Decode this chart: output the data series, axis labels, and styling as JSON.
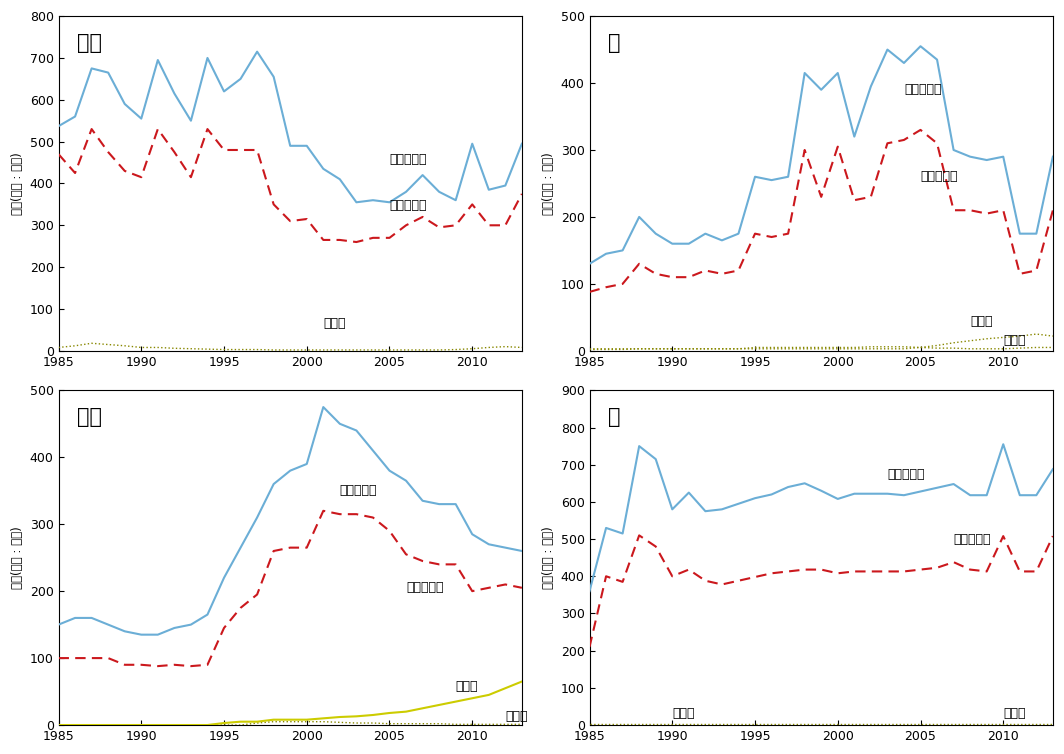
{
  "years": [
    1985,
    1986,
    1987,
    1988,
    1989,
    1990,
    1991,
    1992,
    1993,
    1994,
    1995,
    1996,
    1997,
    1998,
    1999,
    2000,
    2001,
    2002,
    2003,
    2004,
    2005,
    2006,
    2007,
    2008,
    2009,
    2010,
    2011,
    2012,
    2013
  ],
  "apple_prod": [
    537,
    560,
    675,
    665,
    590,
    555,
    695,
    615,
    550,
    700,
    620,
    650,
    715,
    655,
    490,
    490,
    435,
    410,
    355,
    360,
    355,
    380,
    420,
    380,
    360,
    495,
    385,
    395,
    495
  ],
  "apple_food": [
    470,
    425,
    530,
    475,
    430,
    415,
    530,
    475,
    415,
    530,
    480,
    480,
    480,
    350,
    310,
    315,
    265,
    265,
    260,
    270,
    270,
    300,
    320,
    295,
    300,
    350,
    300,
    300,
    375
  ],
  "apple_export": [
    8,
    12,
    18,
    15,
    12,
    8,
    8,
    6,
    5,
    4,
    3,
    3,
    3,
    2,
    2,
    2,
    2,
    2,
    2,
    2,
    2,
    2,
    2,
    2,
    3,
    5,
    8,
    10,
    8
  ],
  "apple_import": [
    0,
    0,
    0,
    0,
    0,
    0,
    0,
    0,
    0,
    0,
    0,
    0,
    0,
    0,
    0,
    0,
    0,
    0,
    0,
    0,
    0,
    0,
    0,
    0,
    0,
    0,
    0,
    0,
    0
  ],
  "pear_prod": [
    130,
    145,
    150,
    200,
    175,
    160,
    160,
    175,
    165,
    175,
    260,
    255,
    260,
    415,
    390,
    415,
    320,
    395,
    450,
    430,
    455,
    435,
    300,
    290,
    285,
    290,
    175,
    175,
    290
  ],
  "pear_food": [
    88,
    95,
    100,
    130,
    115,
    110,
    110,
    120,
    115,
    120,
    175,
    170,
    175,
    300,
    230,
    305,
    225,
    230,
    310,
    315,
    330,
    310,
    210,
    210,
    205,
    210,
    115,
    120,
    210
  ],
  "pear_export": [
    2,
    2,
    2,
    3,
    3,
    3,
    3,
    3,
    3,
    3,
    5,
    5,
    5,
    5,
    5,
    5,
    5,
    6,
    6,
    6,
    5,
    4,
    4,
    3,
    3,
    3,
    4,
    5,
    5
  ],
  "pear_import": [
    3,
    3,
    3,
    3,
    3,
    3,
    3,
    3,
    3,
    3,
    3,
    3,
    3,
    3,
    3,
    3,
    3,
    3,
    3,
    3,
    5,
    8,
    12,
    15,
    18,
    20,
    22,
    25,
    22
  ],
  "grape_prod": [
    150,
    160,
    160,
    150,
    140,
    135,
    135,
    145,
    150,
    165,
    220,
    265,
    310,
    360,
    380,
    390,
    475,
    450,
    440,
    410,
    380,
    365,
    335,
    330,
    330,
    285,
    270,
    265,
    260
  ],
  "grape_food": [
    100,
    100,
    100,
    100,
    90,
    90,
    88,
    90,
    88,
    90,
    145,
    175,
    195,
    260,
    265,
    265,
    320,
    315,
    315,
    310,
    290,
    255,
    245,
    240,
    240,
    200,
    205,
    210,
    205
  ],
  "grape_export": [
    0,
    0,
    0,
    0,
    0,
    0,
    0,
    0,
    0,
    0,
    0,
    0,
    3,
    5,
    5,
    5,
    5,
    4,
    3,
    3,
    2,
    2,
    2,
    2,
    1,
    1,
    1,
    1,
    1
  ],
  "grape_import": [
    0,
    0,
    0,
    0,
    0,
    0,
    0,
    0,
    0,
    0,
    3,
    5,
    5,
    8,
    8,
    8,
    10,
    12,
    13,
    15,
    18,
    20,
    25,
    30,
    35,
    40,
    45,
    55,
    65
  ],
  "citrus_prod": [
    360,
    530,
    515,
    750,
    715,
    580,
    625,
    575,
    580,
    595,
    610,
    620,
    640,
    650,
    630,
    608,
    622,
    622,
    622,
    618,
    628,
    638,
    648,
    618,
    618,
    755,
    618,
    618,
    688
  ],
  "citrus_food": [
    210,
    400,
    385,
    510,
    480,
    400,
    418,
    388,
    378,
    388,
    398,
    408,
    413,
    418,
    418,
    408,
    413,
    413,
    413,
    413,
    418,
    423,
    438,
    418,
    413,
    508,
    413,
    413,
    508
  ],
  "citrus_export": [
    2,
    2,
    2,
    2,
    2,
    2,
    2,
    2,
    2,
    2,
    2,
    2,
    2,
    2,
    2,
    2,
    2,
    2,
    2,
    2,
    2,
    2,
    2,
    2,
    2,
    2,
    2,
    2,
    2
  ],
  "citrus_import": [
    0,
    0,
    0,
    0,
    0,
    0,
    0,
    0,
    0,
    0,
    0,
    0,
    0,
    0,
    0,
    0,
    0,
    0,
    0,
    0,
    0,
    0,
    0,
    0,
    0,
    0,
    0,
    0,
    0
  ],
  "apple_ylim": [
    0,
    800
  ],
  "pear_ylim": [
    0,
    500
  ],
  "grape_ylim": [
    0,
    500
  ],
  "citrus_ylim": [
    0,
    900
  ],
  "apple_yticks": [
    0,
    100,
    200,
    300,
    400,
    500,
    600,
    700,
    800
  ],
  "pear_yticks": [
    0,
    100,
    200,
    300,
    400,
    500
  ],
  "grape_yticks": [
    0,
    100,
    200,
    300,
    400,
    500
  ],
  "citrus_yticks": [
    0,
    100,
    200,
    300,
    400,
    500,
    600,
    700,
    800,
    900
  ],
  "color_prod": "#6baed6",
  "color_food": "#cb181d",
  "color_dotted": "#888800",
  "color_grape_import": "#cccc00",
  "ylabel": "절량(단위 : 실톤)",
  "title_apple": "사과",
  "title_pear": "배",
  "title_grape": "포도",
  "title_citrus": "귀",
  "label_prod": "국내생산량",
  "label_food": "식품공급량",
  "label_export": "수출량",
  "label_import": "수입량",
  "xticks": [
    1985,
    1990,
    1995,
    2000,
    2005,
    2010
  ]
}
